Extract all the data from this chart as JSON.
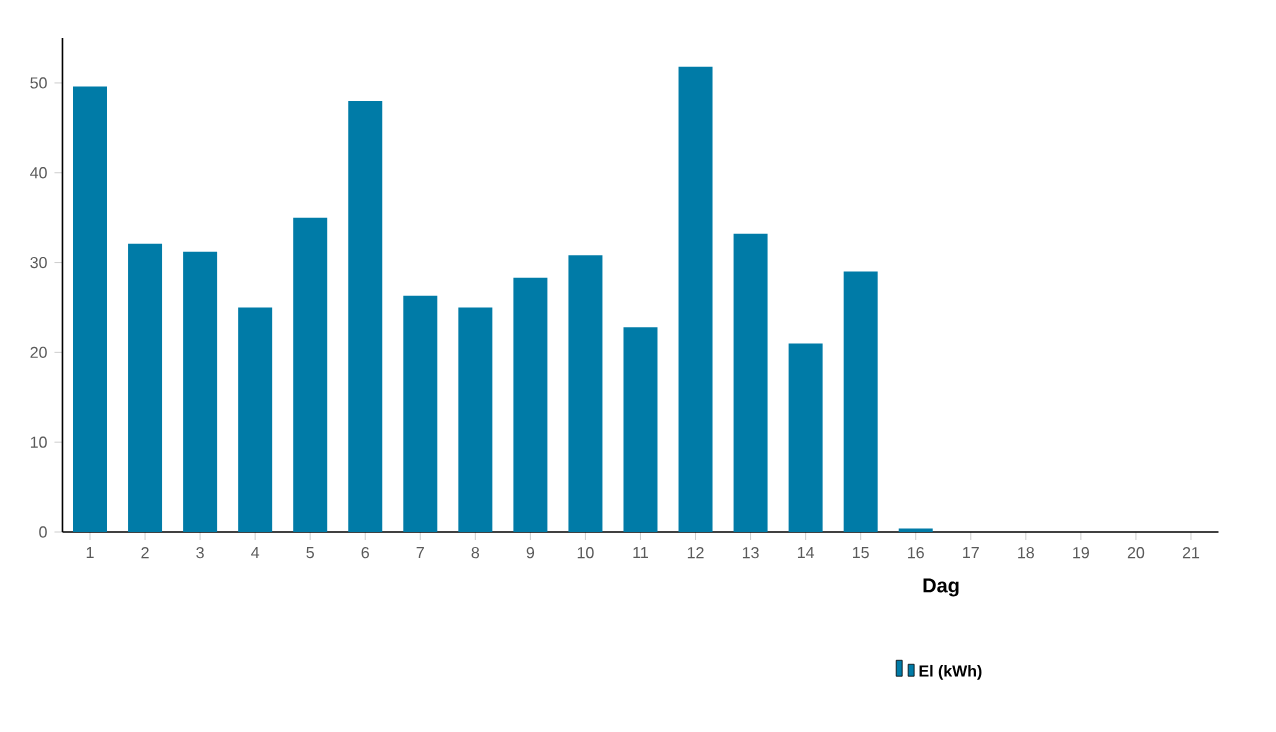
{
  "chart_data": {
    "type": "bar",
    "xlabel": "Dag",
    "categories": [
      "1",
      "2",
      "3",
      "4",
      "5",
      "6",
      "7",
      "8",
      "9",
      "10",
      "11",
      "12",
      "13",
      "14",
      "15",
      "16",
      "17",
      "18",
      "19",
      "20",
      "21"
    ],
    "series": [
      {
        "name": "El (kWh)",
        "color": "#007ba7",
        "values": [
          49.6,
          32.1,
          31.2,
          25.0,
          35.0,
          48.0,
          26.3,
          25.0,
          28.3,
          30.8,
          22.8,
          51.8,
          33.2,
          21.0,
          29.0,
          0.4,
          0,
          0,
          0,
          0,
          0
        ]
      }
    ],
    "ylim": [
      0,
      55
    ],
    "yticks": [
      0,
      10,
      20,
      30,
      40,
      50
    ],
    "grid": false,
    "legend": "bottom"
  }
}
